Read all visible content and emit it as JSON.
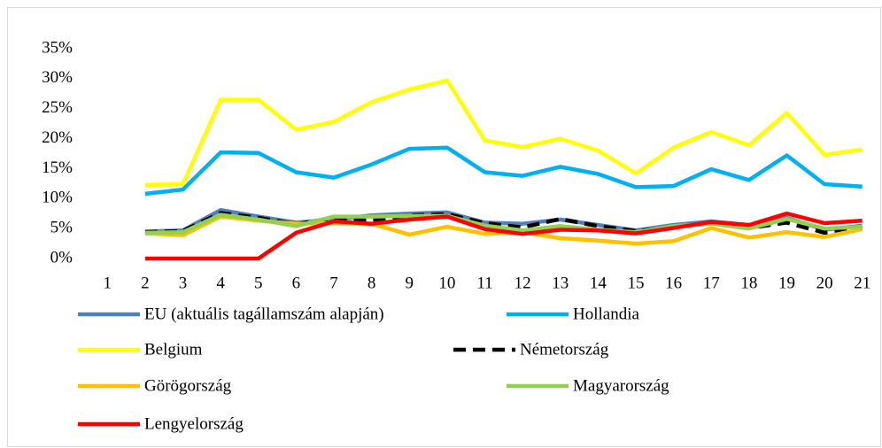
{
  "chart_data": {
    "type": "line",
    "categories": [
      "1",
      "2",
      "3",
      "4",
      "5",
      "6",
      "7",
      "8",
      "9",
      "10",
      "11",
      "12",
      "13",
      "14",
      "15",
      "16",
      "17",
      "18",
      "19",
      "20",
      "21"
    ],
    "ylim": [
      0,
      35
    ],
    "yticks": [
      {
        "value": 0,
        "label": "0%"
      },
      {
        "value": 5,
        "label": "5%"
      },
      {
        "value": 10,
        "label": "10%"
      },
      {
        "value": 15,
        "label": "15%"
      },
      {
        "value": 20,
        "label": "20%"
      },
      {
        "value": 25,
        "label": "25%"
      },
      {
        "value": 30,
        "label": "30%"
      },
      {
        "value": 35,
        "label": "35%"
      }
    ],
    "series": [
      {
        "name": "EU (aktuális tagállamszám alapján)",
        "color": "#4f81bd",
        "values": [
          null,
          4.5,
          4.7,
          8.1,
          7.0,
          6.0,
          6.5,
          7.2,
          7.5,
          7.7,
          6.0,
          5.8,
          6.5,
          5.6,
          4.7,
          5.6,
          6.2,
          5.6,
          6.8,
          4.8,
          5.5
        ]
      },
      {
        "name": "Hollandia",
        "color": "#00b0f0",
        "values": [
          null,
          10.8,
          11.5,
          17.7,
          17.6,
          14.4,
          13.5,
          15.7,
          18.3,
          18.5,
          14.4,
          13.8,
          15.3,
          14.1,
          11.9,
          12.1,
          14.9,
          13.1,
          17.2,
          12.4,
          12.0
        ]
      },
      {
        "name": "Belgium",
        "color": "#ffff00",
        "values": [
          null,
          12.3,
          12.4,
          26.5,
          26.5,
          21.5,
          22.8,
          26.1,
          28.2,
          29.7,
          19.7,
          18.6,
          20.0,
          18.0,
          14.2,
          18.5,
          21.1,
          18.9,
          24.3,
          17.3,
          18.2
        ]
      },
      {
        "name": "Németország",
        "color": "#000000",
        "style": "dashed",
        "values": [
          null,
          4.4,
          4.6,
          7.6,
          6.8,
          5.7,
          6.8,
          6.3,
          7.2,
          7.4,
          5.9,
          5.2,
          6.6,
          5.4,
          4.6,
          5.2,
          6.0,
          5.1,
          6.0,
          4.3,
          5.0
        ]
      },
      {
        "name": "Görögország",
        "color": "#ffc000",
        "values": [
          null,
          4.2,
          3.9,
          7.0,
          6.3,
          5.8,
          5.9,
          5.8,
          4.0,
          5.3,
          4.1,
          4.4,
          3.4,
          3.0,
          2.5,
          2.9,
          5.1,
          3.5,
          4.4,
          3.6,
          4.9
        ]
      },
      {
        "name": "Magyarország",
        "color": "#92d050",
        "values": [
          null,
          4.3,
          4.4,
          7.3,
          6.5,
          5.4,
          7.0,
          7.0,
          7.1,
          7.1,
          5.5,
          4.7,
          5.4,
          4.8,
          4.4,
          5.4,
          5.8,
          5.0,
          6.6,
          5.0,
          5.3
        ]
      },
      {
        "name": "Lengyelország",
        "color": "#ff0000",
        "values": [
          null,
          0,
          0,
          0,
          0,
          4.3,
          6.2,
          5.8,
          6.5,
          7.0,
          4.9,
          4.1,
          4.8,
          4.7,
          4.2,
          5.1,
          6.1,
          5.6,
          7.5,
          5.9,
          6.3
        ]
      }
    ]
  }
}
